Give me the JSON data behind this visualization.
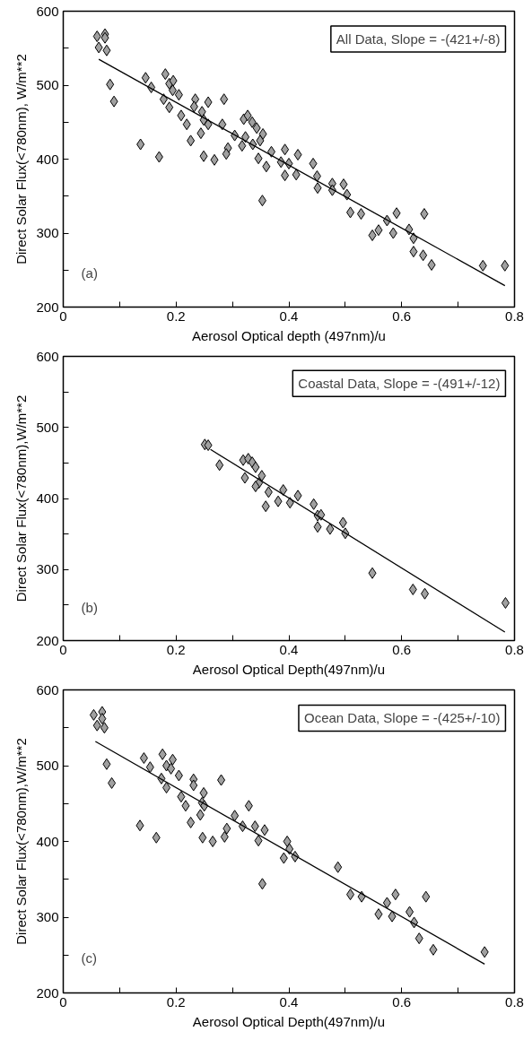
{
  "chart_data": [
    {
      "type": "scatter",
      "xlabel": "Aerosol Optical depth (497nm)/u",
      "ylabel": "Direct Solar Flux(<780nm), W/m**2",
      "annotations": [
        "All Data, Slope = -(421+/-8)",
        "(a)"
      ],
      "grid": false,
      "xlim": [
        0,
        0.8
      ],
      "ylim": [
        200,
        600
      ],
      "xticks": [
        0,
        {
          "value": 0.1,
          "label": null
        },
        0.2,
        {
          "value": 0.3,
          "label": null
        },
        0.4,
        {
          "value": 0.5,
          "label": null
        },
        0.6,
        {
          "value": 0.7,
          "label": null
        },
        0.8
      ],
      "yticks": [
        200,
        {
          "value": 250,
          "label": null
        },
        300,
        {
          "value": 350,
          "label": null
        },
        400,
        {
          "value": 450,
          "label": null
        },
        500,
        {
          "value": 550,
          "label": null
        },
        600
      ],
      "series": [
        {
          "marker": "diamond",
          "color": "#a0a0a0",
          "x": [
            0.06,
            0.074,
            0.063,
            0.077,
            0.074,
            0.083,
            0.09,
            0.146,
            0.156,
            0.181,
            0.188,
            0.195,
            0.194,
            0.205,
            0.178,
            0.188,
            0.209,
            0.219,
            0.234,
            0.232,
            0.246,
            0.249,
            0.257,
            0.244,
            0.257,
            0.226,
            0.285,
            0.282,
            0.137,
            0.17,
            0.249,
            0.268,
            0.292,
            0.289,
            0.304,
            0.32,
            0.327,
            0.335,
            0.343,
            0.354,
            0.323,
            0.317,
            0.336,
            0.349,
            0.346,
            0.36,
            0.369,
            0.353,
            0.386,
            0.393,
            0.4,
            0.393,
            0.413,
            0.416,
            0.443,
            0.45,
            0.451,
            0.477,
            0.477,
            0.497,
            0.503,
            0.509,
            0.528,
            0.548,
            0.559,
            0.574,
            0.591,
            0.585,
            0.613,
            0.621,
            0.621,
            0.638,
            0.64,
            0.653,
            0.744,
            0.783
          ],
          "values": [
            566,
            569,
            551,
            547,
            564,
            501,
            478,
            510,
            497,
            515,
            502,
            506,
            493,
            487,
            481,
            470,
            459,
            447,
            481,
            471,
            464,
            453,
            477,
            435,
            447,
            425,
            481,
            447,
            420,
            403,
            404,
            399,
            415,
            407,
            432,
            454,
            459,
            450,
            442,
            434,
            430,
            418,
            420,
            425,
            401,
            390,
            410,
            344,
            396,
            413,
            394,
            378,
            379,
            406,
            394,
            377,
            361,
            367,
            358,
            366,
            352,
            328,
            326,
            297,
            304,
            317,
            327,
            300,
            305,
            293,
            275,
            270,
            326,
            257,
            256,
            256
          ]
        },
        {
          "type": "line",
          "color": "#000000",
          "x": [
            0.063,
            0.783
          ],
          "values": [
            535,
            229
          ]
        }
      ]
    },
    {
      "type": "scatter",
      "xlabel": "Aerosol Optical Depth(497nm)/u",
      "ylabel": "Direct Solar Flux(<780nm),W/m**2",
      "annotations": [
        "Coastal Data, Slope = -(491+/-12)",
        "(b)"
      ],
      "grid": false,
      "xlim": [
        0,
        0.8
      ],
      "ylim": [
        200,
        600
      ],
      "xticks": [
        0,
        {
          "value": 0.1,
          "label": null
        },
        0.2,
        {
          "value": 0.3,
          "label": null
        },
        0.4,
        {
          "value": 0.5,
          "label": null
        },
        0.6,
        {
          "value": 0.7,
          "label": null
        },
        0.8
      ],
      "yticks": [
        200,
        {
          "value": 250,
          "label": null
        },
        300,
        {
          "value": 350,
          "label": null
        },
        400,
        {
          "value": 450,
          "label": null
        },
        500,
        {
          "value": 550,
          "label": null
        },
        600
      ],
      "series": [
        {
          "marker": "diamond",
          "color": "#a0a0a0",
          "x": [
            0.251,
            0.257,
            0.277,
            0.319,
            0.328,
            0.335,
            0.341,
            0.352,
            0.347,
            0.322,
            0.341,
            0.364,
            0.359,
            0.381,
            0.39,
            0.402,
            0.416,
            0.444,
            0.451,
            0.457,
            0.451,
            0.473,
            0.496,
            0.5,
            0.548,
            0.62,
            0.641,
            0.784
          ],
          "values": [
            476,
            475,
            447,
            454,
            456,
            451,
            444,
            432,
            422,
            429,
            417,
            409,
            389,
            396,
            412,
            394,
            404,
            392,
            376,
            377,
            360,
            357,
            366,
            351,
            295,
            272,
            266,
            253
          ]
        },
        {
          "type": "line",
          "color": "#000000",
          "x": [
            0.261,
            0.783
          ],
          "values": [
            469,
            212
          ]
        }
      ]
    },
    {
      "type": "scatter",
      "xlabel": "Aerosol Optical Depth(497nm)/u",
      "ylabel": "Direct Solar Flux(<780nm),W/m**2",
      "annotations": [
        "Ocean Data, Slope = -(425+/-10)",
        "(c)"
      ],
      "grid": false,
      "xlim": [
        0,
        0.8
      ],
      "ylim": [
        200,
        600
      ],
      "xticks": [
        0,
        {
          "value": 0.1,
          "label": null
        },
        0.2,
        {
          "value": 0.3,
          "label": null
        },
        0.4,
        {
          "value": 0.5,
          "label": null
        },
        0.6,
        {
          "value": 0.7,
          "label": null
        },
        0.8
      ],
      "yticks": [
        200,
        {
          "value": 250,
          "label": null
        },
        300,
        {
          "value": 350,
          "label": null
        },
        400,
        {
          "value": 450,
          "label": null
        },
        500,
        {
          "value": 550,
          "label": null
        },
        600
      ],
      "series": [
        {
          "marker": "diamond",
          "color": "#a0a0a0",
          "x": [
            0.054,
            0.069,
            0.06,
            0.073,
            0.069,
            0.077,
            0.086,
            0.143,
            0.154,
            0.176,
            0.183,
            0.194,
            0.191,
            0.205,
            0.174,
            0.183,
            0.209,
            0.217,
            0.231,
            0.231,
            0.249,
            0.246,
            0.25,
            0.243,
            0.28,
            0.226,
            0.136,
            0.165,
            0.247,
            0.265,
            0.286,
            0.29,
            0.304,
            0.329,
            0.318,
            0.34,
            0.357,
            0.346,
            0.353,
            0.397,
            0.401,
            0.391,
            0.411,
            0.487,
            0.509,
            0.529,
            0.559,
            0.574,
            0.589,
            0.583,
            0.614,
            0.622,
            0.631,
            0.643,
            0.656,
            0.747
          ],
          "values": [
            567,
            571,
            553,
            550,
            562,
            502,
            477,
            510,
            498,
            515,
            500,
            508,
            496,
            487,
            483,
            471,
            459,
            447,
            482,
            474,
            464,
            451,
            447,
            435,
            481,
            425,
            421,
            405,
            405,
            400,
            406,
            417,
            434,
            447,
            420,
            420,
            415,
            401,
            344,
            400,
            390,
            378,
            380,
            366,
            330,
            327,
            304,
            319,
            330,
            301,
            307,
            293,
            272,
            327,
            257,
            254
          ]
        },
        {
          "type": "line",
          "color": "#000000",
          "x": [
            0.057,
            0.747
          ],
          "values": [
            532,
            238
          ]
        }
      ]
    }
  ]
}
